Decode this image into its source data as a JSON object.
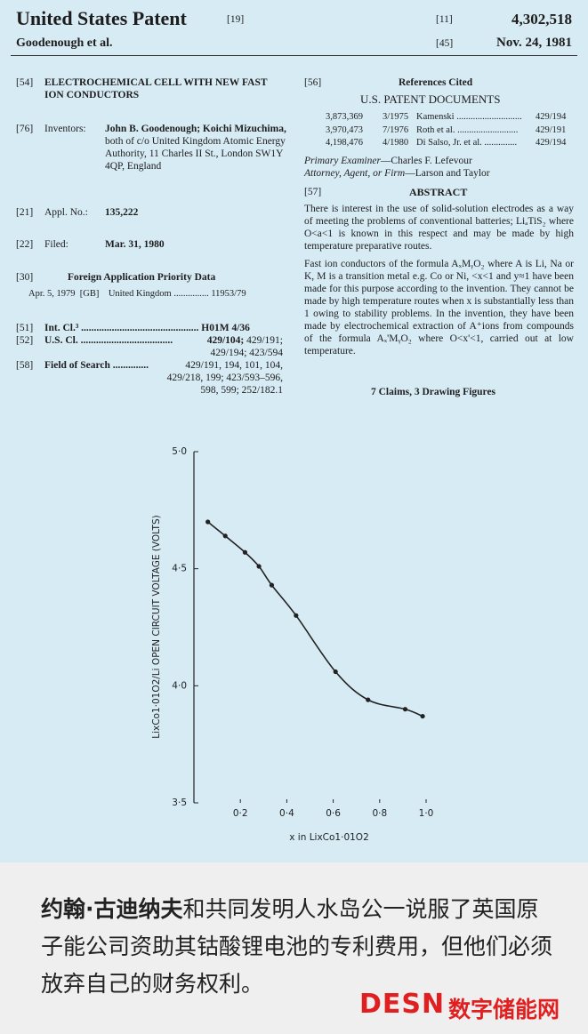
{
  "header": {
    "title": "United States Patent",
    "title_code": "[19]",
    "number_code": "[11]",
    "number": "4,302,518",
    "inventors_short": "Goodenough et al.",
    "date_code": "[45]",
    "date": "Nov. 24, 1981"
  },
  "left": {
    "title_code": "[54]",
    "title": "ELECTROCHEMICAL CELL WITH NEW FAST ION CONDUCTORS",
    "inventors_code": "[76]",
    "inventors_label": "Inventors:",
    "inventors_names": "John B. Goodenough; Koichi Mizuchima,",
    "inventors_address": "both of c/o United Kingdom Atomic Energy Authority, 11 Charles II St., London SW1Y 4QP, England",
    "appl_code": "[21]",
    "appl_label": "Appl. No.:",
    "appl_value": "135,222",
    "filed_code": "[22]",
    "filed_label": "Filed:",
    "filed_value": "Mar. 31, 1980",
    "priority_code": "[30]",
    "priority_title": "Foreign Application Priority Data",
    "priority_row": "Apr. 5, 1979  [GB]    United Kingdom ............... 11953/79",
    "intcl_code": "[51]",
    "intcl_label": "Int. Cl.³ ..............................................",
    "intcl_value": "H01M 4/36",
    "uscl_code": "[52]",
    "uscl_label": "U.S. Cl. ....................................",
    "uscl_bold": "429/104;",
    "uscl_rest": "429/191; 429/194; 423/594",
    "search_code": "[58]",
    "search_label": "Field of Search ..............",
    "search_value": "429/191, 194, 101, 104, 429/218, 199; 423/593–596, 598, 599; 252/182.1"
  },
  "right": {
    "refs_code": "[56]",
    "refs_title": "References Cited",
    "refs_subtitle": "U.S. PATENT DOCUMENTS",
    "refs": [
      [
        "3,873,369",
        "3/1975",
        "Kamenski ............................",
        "429/194"
      ],
      [
        "3,970,473",
        "7/1976",
        "Roth et al. ..........................",
        "429/191"
      ],
      [
        "4,198,476",
        "4/1980",
        "Di Salso, Jr. et al. ..............",
        "429/194"
      ]
    ],
    "examiner_label": "Primary Examiner",
    "examiner": "—Charles F. Lefevour",
    "attorney_label": "Attorney, Agent, or Firm",
    "attorney": "—Larson and Taylor",
    "abstract_code": "[57]",
    "abstract_title": "ABSTRACT",
    "abstract_1": "There is interest in the use of solid-solution electrodes as a way of meeting the problems of conventional batteries; LiₐTiS₂ where O<a<1 is known in this respect and may be made by high temperature preparative routes.",
    "abstract_2": "Fast ion conductors of the formula AₓMᵧO₂ where A is Li, Na or K, M is a transition metal e.g. Co or Ni, <x<1 and y≈1 have been made for this purpose according to the invention. They cannot be made by high temperature routes when x is substantially less than 1 owing to stability problems. In the invention, they have been made by electrochemical extraction of A⁺ions from compounds of the formula Aₓ'MᵧO₂ where O<x'<1, carried out at low temperature.",
    "claims": "7 Claims, 3 Drawing Figures"
  },
  "chart_data": {
    "type": "line",
    "xlabel": "x in LixCo1·01O2",
    "ylabel": "LixCo1·01O2/Li OPEN CIRCUIT VOLTAGE (VOLTS)",
    "x": [
      0.06,
      0.135,
      0.22,
      0.28,
      0.335,
      0.44,
      0.61,
      0.75,
      0.91,
      0.985
    ],
    "values": [
      4.7,
      4.64,
      4.57,
      4.51,
      4.43,
      4.3,
      4.06,
      3.94,
      3.9,
      3.87
    ],
    "color": "#222222",
    "xlim": [
      0,
      1.0
    ],
    "ylim": [
      3.5,
      5.0
    ],
    "xticks": [
      {
        "value": 0.2,
        "label": "0·2"
      },
      {
        "value": 0.4,
        "label": "0·4"
      },
      {
        "value": 0.6,
        "label": "0·6"
      },
      {
        "value": 0.8,
        "label": "0·8"
      },
      {
        "value": 1.0,
        "label": "1·0"
      }
    ],
    "yticks": [
      {
        "value": 3.5,
        "label": "3·5"
      },
      {
        "value": 4.0,
        "label": "4·0"
      },
      {
        "value": 4.5,
        "label": "4·5"
      },
      {
        "value": 5.0,
        "label": "5·0"
      }
    ]
  },
  "caption": {
    "bold": "约翰·古迪纳夫",
    "text": "和共同发明人水岛公一说服了英国原子能公司资助其钴酸锂电池的专利费用，但他们必须放弃自己的财务权利。"
  },
  "logo": {
    "mark": "DESN",
    "name": "数字储能网"
  }
}
